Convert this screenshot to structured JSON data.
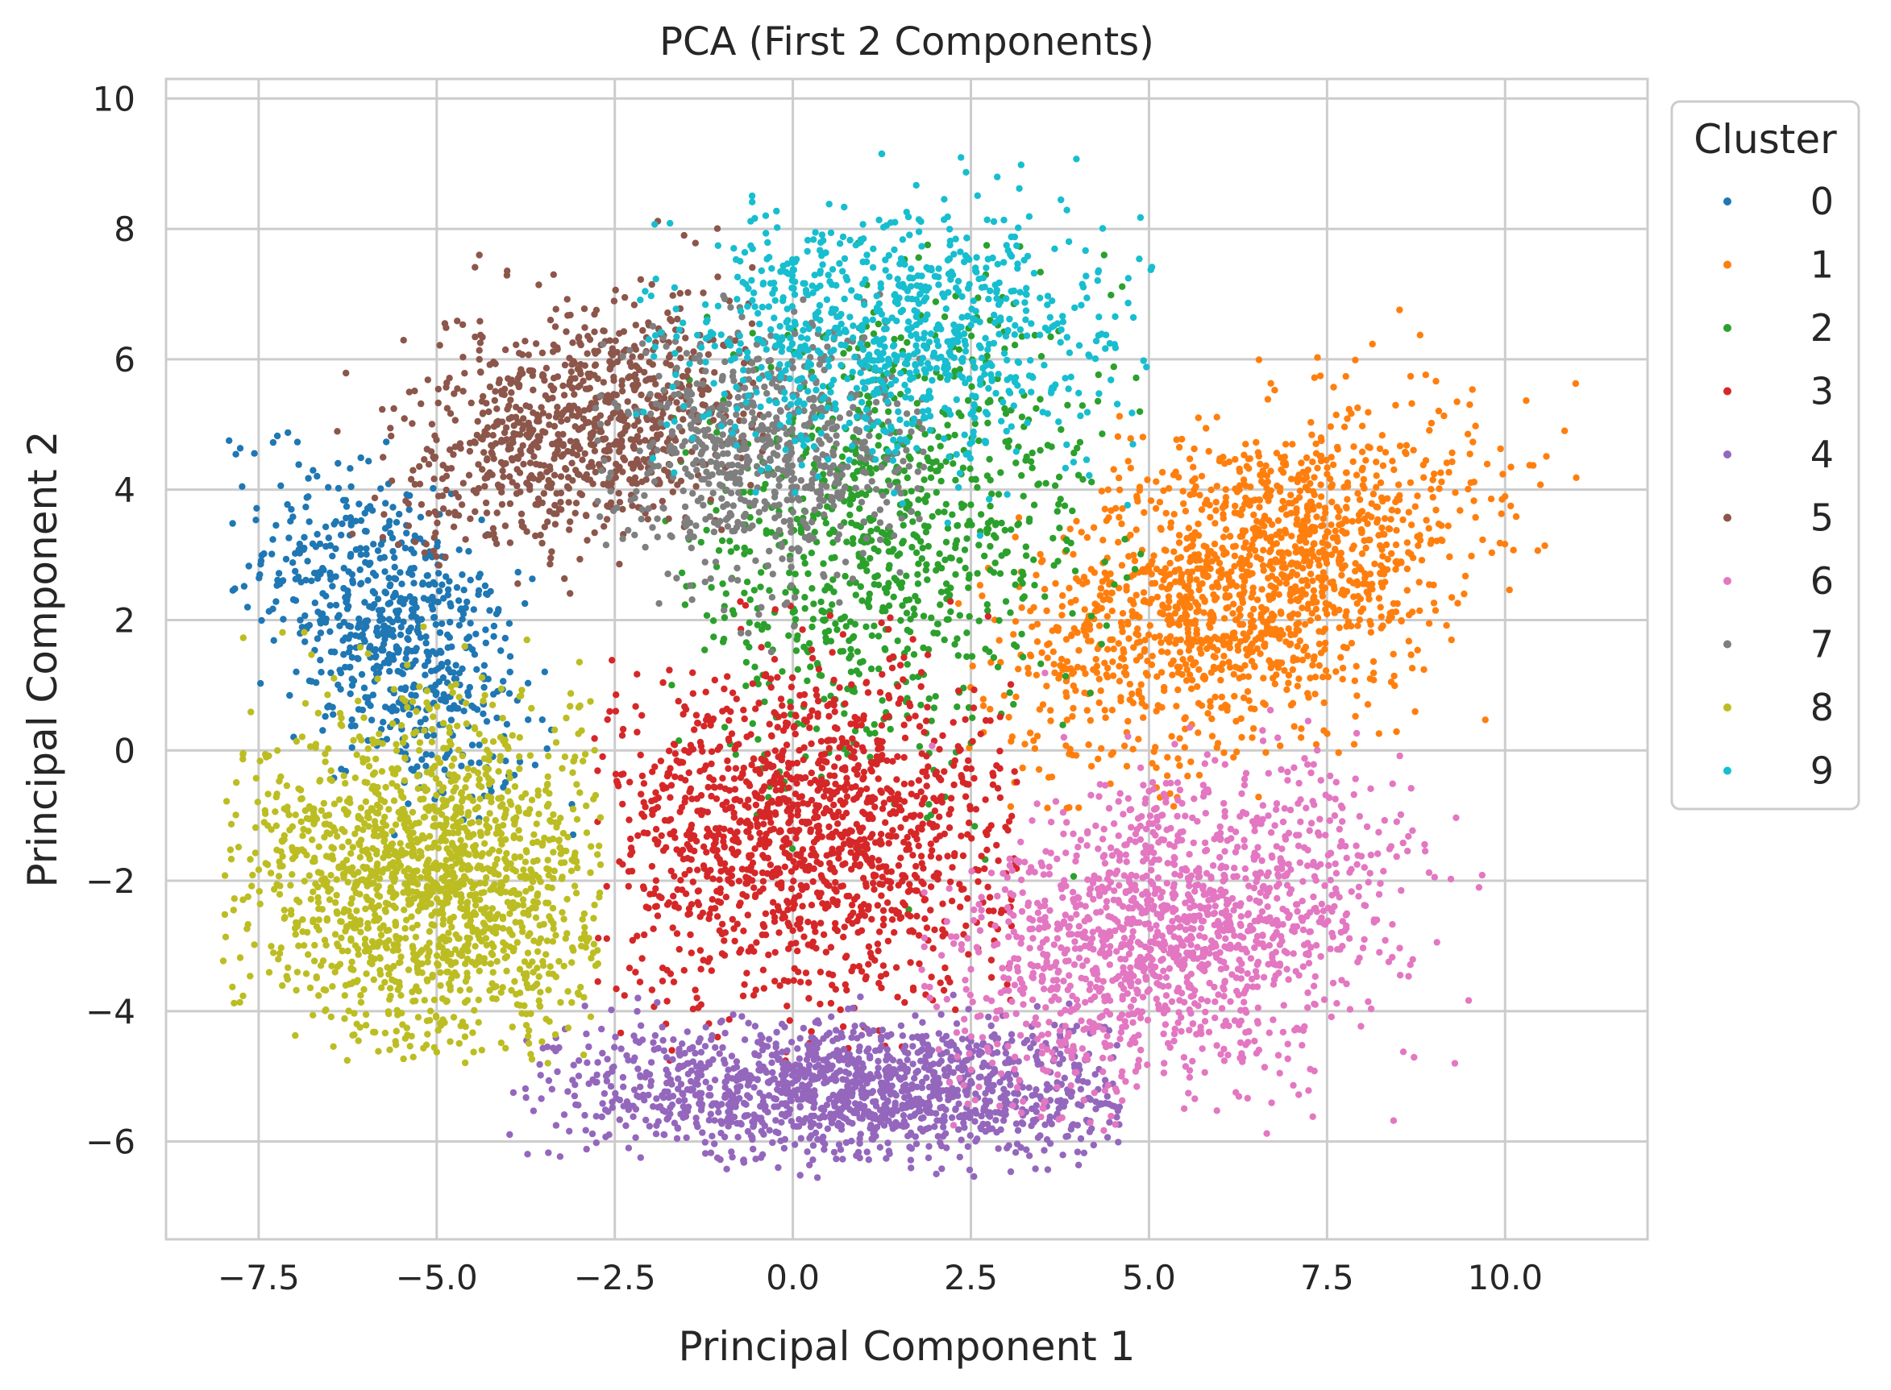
{
  "chart_data": {
    "type": "scatter",
    "title": "PCA (First 2 Components)",
    "xlabel": "Principal Component 1",
    "ylabel": "Principal Component 2",
    "xlim": [
      -8.8,
      12.0
    ],
    "ylim": [
      -7.5,
      10.3
    ],
    "x_ticks": [
      -7.5,
      -5.0,
      -2.5,
      0.0,
      2.5,
      5.0,
      7.5,
      10.0
    ],
    "x_tick_labels": [
      "−7.5",
      "−5.0",
      "−2.5",
      "0.0",
      "2.5",
      "5.0",
      "7.5",
      "10.0"
    ],
    "y_ticks": [
      -6,
      -4,
      -2,
      0,
      2,
      4,
      6,
      8,
      10
    ],
    "y_tick_labels": [
      "−6",
      "−4",
      "−2",
      "0",
      "2",
      "4",
      "6",
      "8",
      "10"
    ],
    "grid": true,
    "legend": {
      "title": "Cluster",
      "placement": "outside-top-right",
      "entries": [
        "0",
        "1",
        "2",
        "3",
        "4",
        "5",
        "6",
        "7",
        "8",
        "9"
      ]
    },
    "series": [
      {
        "name": "0",
        "color": "#1f77b4",
        "center": [
          -5.6,
          1.8
        ],
        "spread": [
          0.9,
          1.3
        ],
        "count": 700,
        "corr": -0.5,
        "region": [
          -8.0,
          -3.0,
          -1.3,
          5.0
        ]
      },
      {
        "name": "1",
        "color": "#ff7f0e",
        "center": [
          6.4,
          2.6
        ],
        "spread": [
          1.6,
          1.3
        ],
        "count": 1600,
        "corr": 0.45,
        "region": [
          2.3,
          11.0,
          -1.0,
          7.4
        ]
      },
      {
        "name": "2",
        "color": "#2ca02c",
        "center": [
          1.3,
          3.2
        ],
        "spread": [
          1.6,
          1.7
        ],
        "count": 900,
        "corr": 0.2,
        "region": [
          -1.8,
          4.9,
          -2.6,
          7.8
        ]
      },
      {
        "name": "3",
        "color": "#d62728",
        "center": [
          0.2,
          -1.3
        ],
        "spread": [
          1.5,
          1.3
        ],
        "count": 1400,
        "corr": 0.0,
        "region": [
          -2.8,
          3.2,
          -4.8,
          2.3
        ]
      },
      {
        "name": "4",
        "color": "#9467bd",
        "center": [
          0.9,
          -5.2
        ],
        "spread": [
          2.1,
          0.55
        ],
        "count": 1400,
        "corr": 0.0,
        "region": [
          -4.1,
          4.6,
          -6.6,
          -3.7
        ]
      },
      {
        "name": "5",
        "color": "#8c564b",
        "center": [
          -3.0,
          5.0
        ],
        "spread": [
          1.2,
          0.95
        ],
        "count": 900,
        "corr": 0.35,
        "region": [
          -6.7,
          -0.4,
          2.4,
          8.4
        ]
      },
      {
        "name": "6",
        "color": "#e377c2",
        "center": [
          5.4,
          -2.8
        ],
        "spread": [
          1.6,
          1.2
        ],
        "count": 1500,
        "corr": 0.3,
        "region": [
          1.8,
          9.8,
          -5.9,
          1.5
        ]
      },
      {
        "name": "7",
        "color": "#7f7f7f",
        "center": [
          -0.3,
          4.6
        ],
        "spread": [
          1.1,
          1.0
        ],
        "count": 700,
        "corr": 0.0,
        "region": [
          -2.8,
          1.9,
          1.5,
          7.2
        ]
      },
      {
        "name": "8",
        "color": "#bcbd22",
        "center": [
          -5.0,
          -2.0
        ],
        "spread": [
          1.4,
          1.3
        ],
        "count": 1600,
        "corr": 0.0,
        "region": [
          -8.0,
          -2.7,
          -4.8,
          3.2
        ]
      },
      {
        "name": "9",
        "color": "#17becf",
        "center": [
          1.4,
          6.4
        ],
        "spread": [
          1.6,
          1.0
        ],
        "count": 900,
        "corr": 0.0,
        "region": [
          -2.2,
          5.1,
          3.2,
          9.5
        ]
      }
    ]
  }
}
